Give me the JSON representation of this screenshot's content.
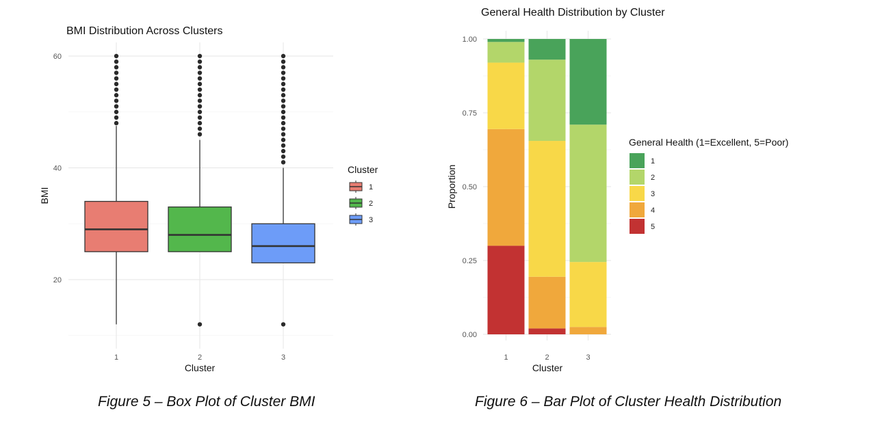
{
  "chart_data": [
    {
      "type": "boxplot",
      "title": "BMI Distribution Across Clusters",
      "xlabel": "Cluster",
      "ylabel": "BMI",
      "ylim": [
        10,
        62
      ],
      "yticks": [
        20,
        40,
        60
      ],
      "grid": true,
      "legend_title": "Cluster",
      "legend_position": "right",
      "categories": [
        "1",
        "2",
        "3"
      ],
      "series": [
        {
          "name": "1",
          "color": "#E87D72",
          "whisker_low": 12,
          "q1": 25,
          "median": 29,
          "q3": 34,
          "whisker_high": 47.5,
          "outliers": [
            48,
            49,
            50,
            51,
            52,
            53,
            54,
            55,
            56,
            57,
            58,
            59,
            60
          ]
        },
        {
          "name": "2",
          "color": "#53B74C",
          "whisker_low": 25,
          "q1": 25,
          "median": 28,
          "q3": 33,
          "whisker_high": 45,
          "outliers": [
            12,
            46,
            47,
            48,
            49,
            50,
            51,
            52,
            53,
            54,
            55,
            56,
            57,
            58,
            59,
            60
          ]
        },
        {
          "name": "3",
          "color": "#6D9CF8",
          "whisker_low": 23,
          "q1": 23,
          "median": 26,
          "q3": 30,
          "whisker_high": 40,
          "outliers": [
            12,
            41,
            42,
            43,
            44,
            45,
            46,
            47,
            48,
            49,
            50,
            51,
            52,
            53,
            54,
            55,
            56,
            57,
            58,
            59,
            60
          ]
        }
      ]
    },
    {
      "type": "stacked_bar",
      "title": "General Health Distribution by Cluster",
      "xlabel": "Cluster",
      "ylabel": "Proportion",
      "ylim": [
        0,
        1
      ],
      "yticks": [
        "0.00",
        "0.25",
        "0.50",
        "0.75",
        "1.00"
      ],
      "grid": true,
      "legend_title": "General Health (1=Excellent, 5=Poor)",
      "legend_position": "right",
      "categories": [
        "1",
        "2",
        "3"
      ],
      "series": [
        {
          "name": "5",
          "color": "#C23232",
          "values": [
            0.3,
            0.02,
            0.0
          ]
        },
        {
          "name": "4",
          "color": "#F0A83C",
          "values": [
            0.395,
            0.175,
            0.025
          ]
        },
        {
          "name": "3",
          "color": "#F8D848",
          "values": [
            0.225,
            0.46,
            0.22
          ]
        },
        {
          "name": "2",
          "color": "#B3D66A",
          "values": [
            0.07,
            0.275,
            0.465
          ]
        },
        {
          "name": "1",
          "color": "#49A35A",
          "values": [
            0.01,
            0.07,
            0.29
          ]
        }
      ]
    }
  ],
  "captions": {
    "left": "Figure 5 – Box Plot of Cluster BMI",
    "right": "Figure 6 – Bar Plot of Cluster Health Distribution"
  }
}
